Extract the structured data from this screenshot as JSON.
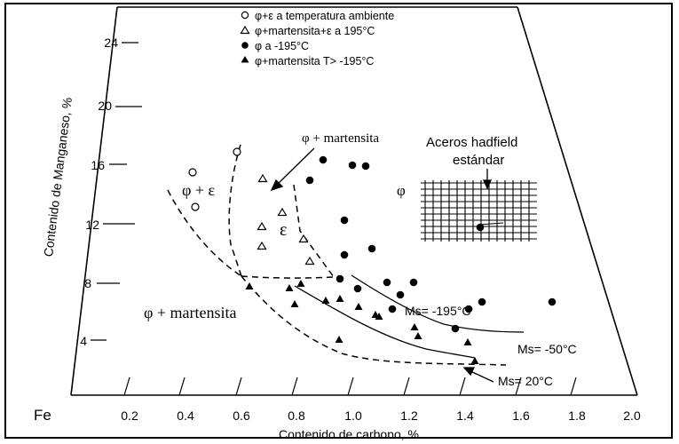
{
  "legend": [
    {
      "marker": "open-circle",
      "label": "φ+ε a temperatura ambiente"
    },
    {
      "marker": "open-triangle",
      "label": "φ+martensita+ε a 195°C"
    },
    {
      "marker": "filled-circle",
      "label": "φ a -195°C"
    },
    {
      "marker": "filled-triangle",
      "label": "φ+martensita T> -195°C"
    }
  ],
  "axes": {
    "mn_title": "Contenido de Manganeso, %",
    "c_title": "Contenido de carbono, %",
    "fe_label": "Fe",
    "mn_ticks": [
      "4",
      "8",
      "12",
      "16",
      "20",
      "24"
    ],
    "c_ticks": [
      "0.2",
      "0.4",
      "0.6",
      "0.8",
      "1.0",
      "1.2",
      "1.4",
      "1.6",
      "1.8",
      "2.0"
    ]
  },
  "regions": {
    "phi_eps": "φ + ε",
    "eps": "ε",
    "phi": "φ",
    "phi_mart_left": "φ + martensita",
    "phi_mart_top": "φ + martensita"
  },
  "annotations": {
    "hadfield_line1": "Aceros hadfield",
    "hadfield_line2": "estándar",
    "ms_195": "Ms= -195°C",
    "ms_50": "Ms= -50°C",
    "ms_20": "Ms= 20°C"
  },
  "colors": {
    "ink": "#000000",
    "background": "#ffffff"
  }
}
